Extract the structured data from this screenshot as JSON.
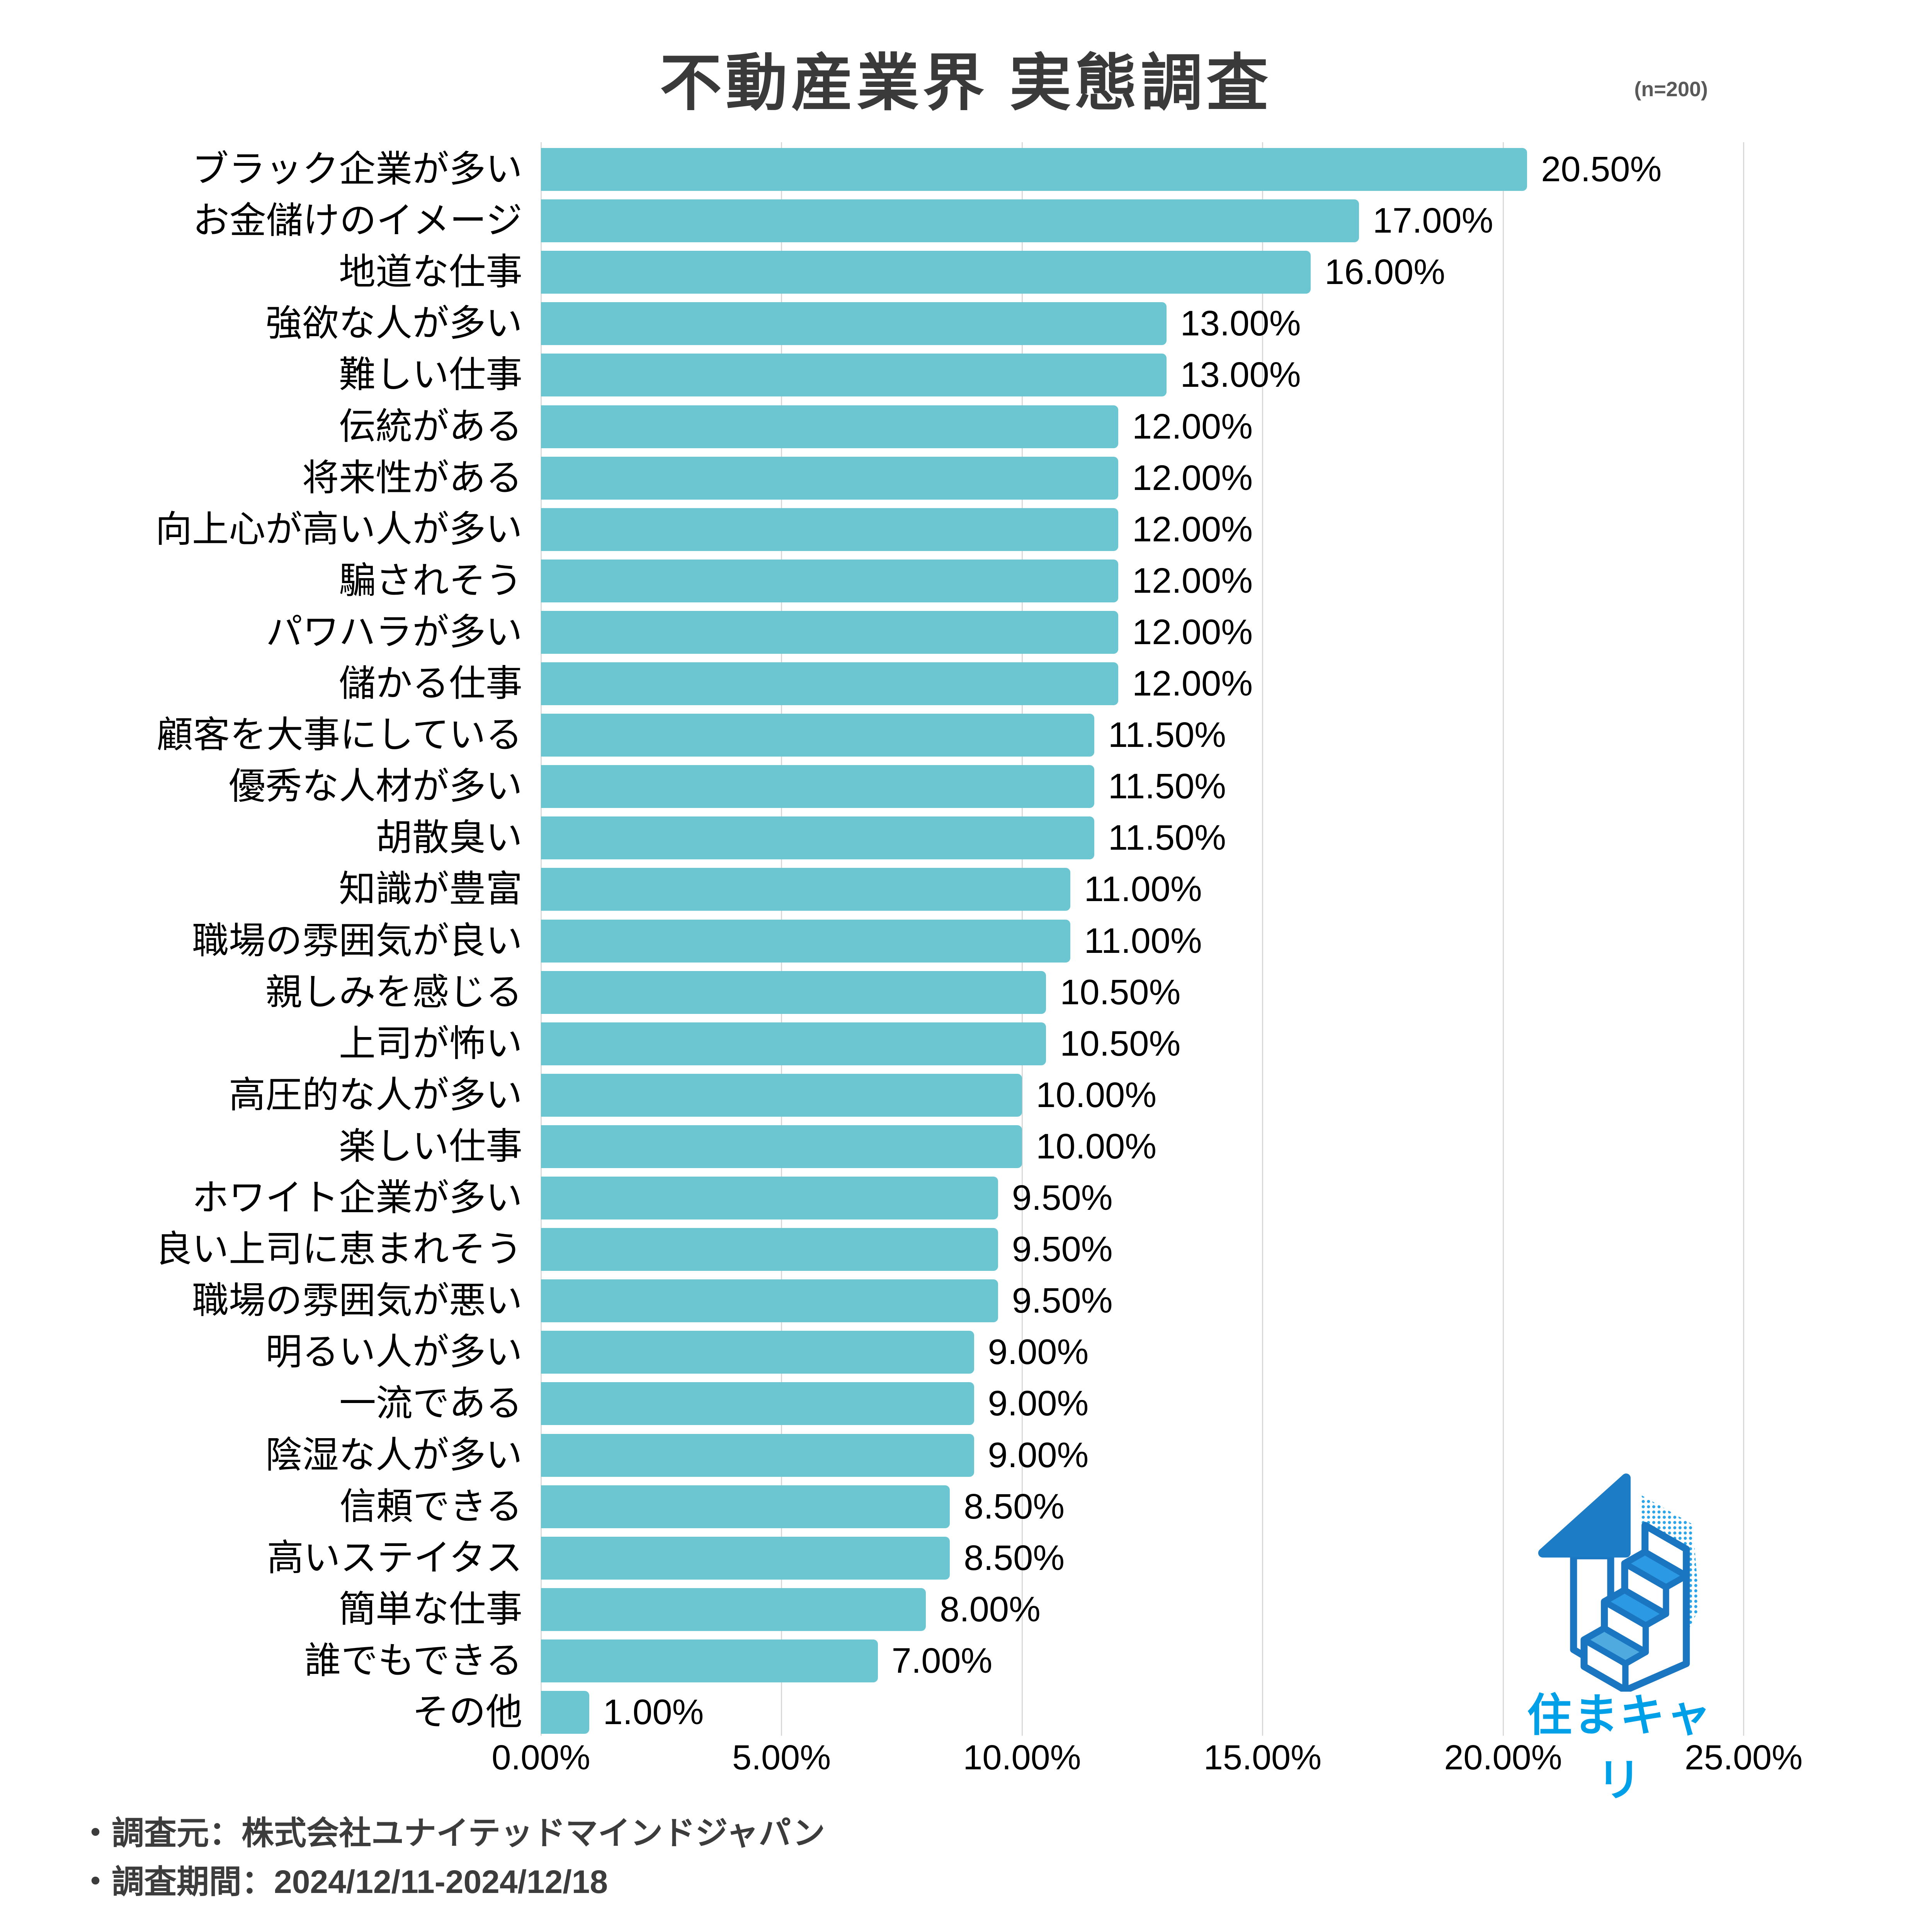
{
  "title": "不動産業界 実態調査",
  "sample_label": "(n=200)",
  "chart_data": {
    "type": "bar",
    "orientation": "horizontal",
    "title": "不動産業界 実態調査",
    "sample_size": "n=200",
    "categories": [
      "ブラック企業が多い",
      "お金儲けのイメージ",
      "地道な仕事",
      "強欲な人が多い",
      "難しい仕事",
      "伝統がある",
      "将来性がある",
      "向上心が高い人が多い",
      "騙されそう",
      "パワハラが多い",
      "儲かる仕事",
      "顧客を大事にしている",
      "優秀な人材が多い",
      "胡散臭い",
      "知識が豊富",
      "職場の雰囲気が良い",
      "親しみを感じる",
      "上司が怖い",
      "高圧的な人が多い",
      "楽しい仕事",
      "ホワイト企業が多い",
      "良い上司に恵まれそう",
      "職場の雰囲気が悪い",
      "明るい人が多い",
      "一流である",
      "陰湿な人が多い",
      "信頼できる",
      "高いステイタス",
      "簡単な仕事",
      "誰でもできる",
      "その他"
    ],
    "values": [
      20.5,
      17,
      16,
      13,
      13,
      12,
      12,
      12,
      12,
      12,
      12,
      11.5,
      11.5,
      11.5,
      11,
      11,
      10.5,
      10.5,
      10,
      10,
      9.5,
      9.5,
      9.5,
      9,
      9,
      9,
      8.5,
      8.5,
      8,
      7,
      1
    ],
    "value_labels": [
      "20.50%",
      "17.00%",
      "16.00%",
      "13.00%",
      "13.00%",
      "12.00%",
      "12.00%",
      "12.00%",
      "12.00%",
      "12.00%",
      "12.00%",
      "11.50%",
      "11.50%",
      "11.50%",
      "11.00%",
      "11.00%",
      "10.50%",
      "10.50%",
      "10.00%",
      "10.00%",
      "9.50%",
      "9.50%",
      "9.50%",
      "9.00%",
      "9.00%",
      "9.00%",
      "8.50%",
      "8.50%",
      "8.00%",
      "7.00%",
      "1.00%"
    ],
    "x_ticks": [
      "0.00%",
      "5.00%",
      "10.00%",
      "15.00%",
      "20.00%",
      "25.00%"
    ],
    "xlim": [
      0,
      25
    ],
    "grid": true,
    "legend": false,
    "bar_color": "#6BC6D2",
    "grid_color": "#d9d9d9"
  },
  "footer": {
    "source": "・調査元：株式会社ユナイテッドマインドジャパン",
    "period": "・調査期間：2024/12/11-2024/12/18"
  },
  "logo": {
    "text": "住まキャリ",
    "text_color": "#00A0E9",
    "outline_color": "#1B76C2",
    "roof_color": "#1D7CC6",
    "step_color": "#2B99E3",
    "step_light_color": "#4FAAE0",
    "dot_color": "#1FA0E8"
  }
}
